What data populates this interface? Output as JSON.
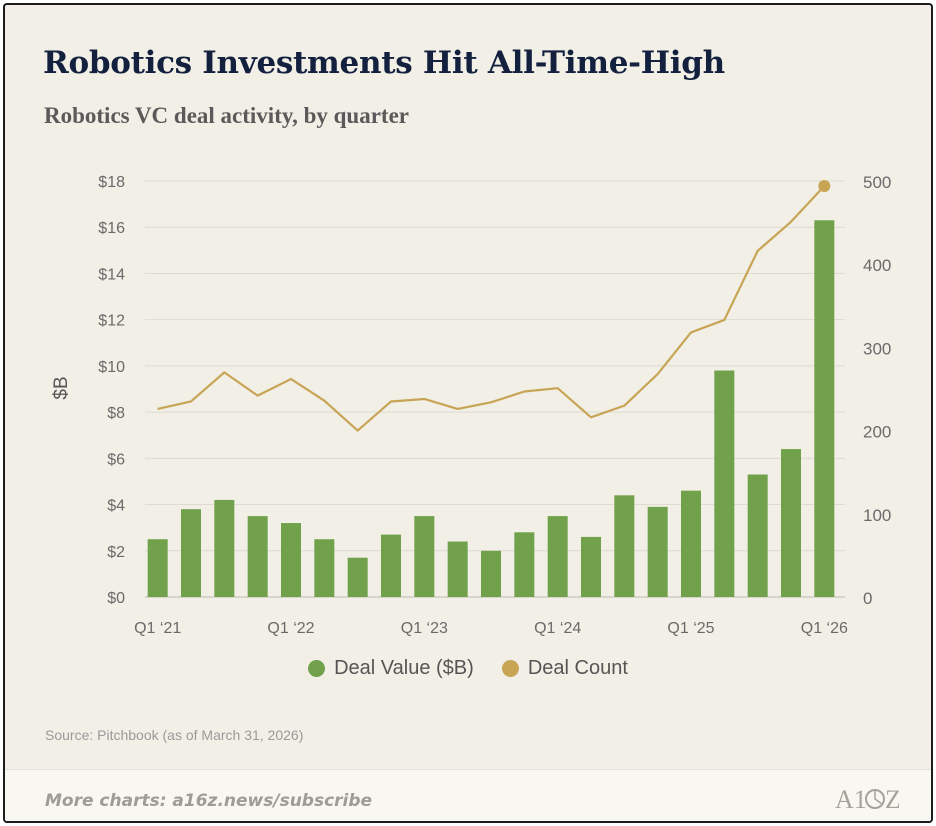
{
  "title": "Robotics Investments Hit All-Time-High",
  "subtitle": "Robotics VC deal activity, by quarter",
  "source": "Source: Pitchbook (as of March 31, 2026)",
  "footer": {
    "text": "More charts: a16z.news/subscribe",
    "logo": "A16Z"
  },
  "colors": {
    "bar": "#71a14b",
    "line": "#c8a455",
    "title": "#13213f",
    "background": "#f1efe6"
  },
  "chart_data": {
    "type": "bar",
    "combo": "bar+line",
    "categories": [
      "Q1 '21",
      "Q2 '21",
      "Q3 '21",
      "Q4 '21",
      "Q1 '22",
      "Q2 '22",
      "Q3 '22",
      "Q4 '22",
      "Q1 '23",
      "Q2 '23",
      "Q3 '23",
      "Q4 '23",
      "Q1 '24",
      "Q2 '24",
      "Q3 '24",
      "Q4 '24",
      "Q1 '25",
      "Q2 '25",
      "Q3 '25",
      "Q4 '25",
      "Q1 '26"
    ],
    "x_tick_labels": [
      "Q1 ‘21",
      "Q1 ‘22",
      "Q1 ‘23",
      "Q1 ‘24",
      "Q1 ‘25",
      "Q1 ‘26"
    ],
    "x_tick_indices": [
      0,
      4,
      8,
      12,
      16,
      20
    ],
    "series": [
      {
        "name": "Deal Value ($B)",
        "type": "bar",
        "axis": "left",
        "values": [
          2.5,
          3.8,
          4.2,
          3.5,
          3.2,
          2.5,
          1.7,
          2.7,
          3.5,
          2.4,
          2.0,
          2.8,
          3.5,
          2.6,
          4.4,
          3.9,
          4.6,
          9.8,
          5.3,
          6.4,
          16.3
        ]
      },
      {
        "name": "Deal Count",
        "type": "line",
        "axis": "right",
        "values": [
          226,
          235,
          270,
          242,
          262,
          236,
          200,
          235,
          238,
          226,
          234,
          247,
          251,
          216,
          230,
          268,
          318,
          333,
          416,
          451,
          494
        ]
      }
    ],
    "ylabel": "$B",
    "ylim": [
      0,
      18
    ],
    "y_ticks": [
      0,
      2,
      4,
      6,
      8,
      10,
      12,
      14,
      16,
      18
    ],
    "y_tick_labels": [
      "$0",
      "$2",
      "$4",
      "$6",
      "$8",
      "$10",
      "$12",
      "$14",
      "$16",
      "$18"
    ],
    "y2lim": [
      0,
      500
    ],
    "y2_ticks": [
      0,
      100,
      200,
      300,
      400,
      500
    ],
    "y2_tick_labels": [
      "0",
      "100",
      "200",
      "300",
      "400",
      "500"
    ],
    "grid": true,
    "legend": "bottom-center"
  }
}
